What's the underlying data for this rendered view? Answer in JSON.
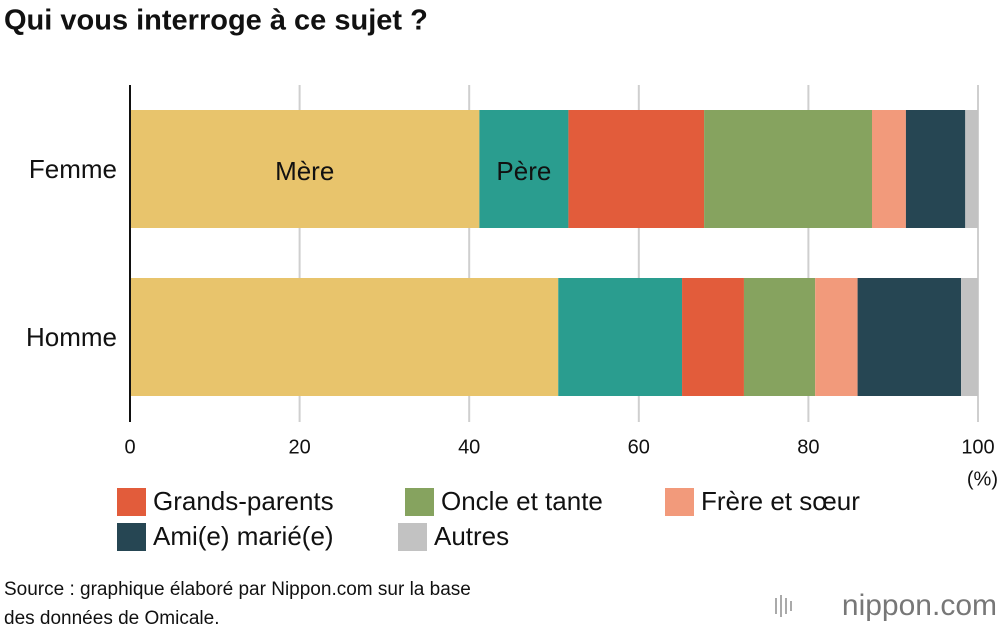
{
  "chart_data": {
    "type": "stacked_barh",
    "title": "Qui vous interroge à ce sujet ?",
    "categories": [
      "Femme",
      "Homme"
    ],
    "series": [
      {
        "name": "Mère",
        "color": "#e8c46c",
        "label_in_bar": true,
        "values": [
          41.2,
          50.5
        ]
      },
      {
        "name": "Père",
        "color": "#2a9d8f",
        "label_in_bar": true,
        "values": [
          10.5,
          14.6
        ]
      },
      {
        "name": "Grands-parents",
        "color": "#e25c3b",
        "values": [
          16.0,
          7.3
        ]
      },
      {
        "name": "Oncle et tante",
        "color": "#86a35f",
        "values": [
          19.8,
          8.4
        ]
      },
      {
        "name": "Frère et sœur",
        "color": "#f29a7b",
        "values": [
          4.0,
          5.0
        ]
      },
      {
        "name": "Ami(e) marié(e)",
        "color": "#264653",
        "values": [
          7.0,
          12.2
        ]
      },
      {
        "name": "Autres",
        "color": "#c2c2c2",
        "values": [
          1.5,
          2.0
        ]
      }
    ],
    "xlim": [
      0,
      100
    ],
    "xticks": [
      0,
      20,
      40,
      60,
      80,
      100
    ],
    "x_unit": "(%)",
    "grid": true,
    "source": [
      "Source : graphique élaboré par Nippon.com sur la base",
      "des données de Omicale."
    ],
    "logo": "nippon.com"
  }
}
